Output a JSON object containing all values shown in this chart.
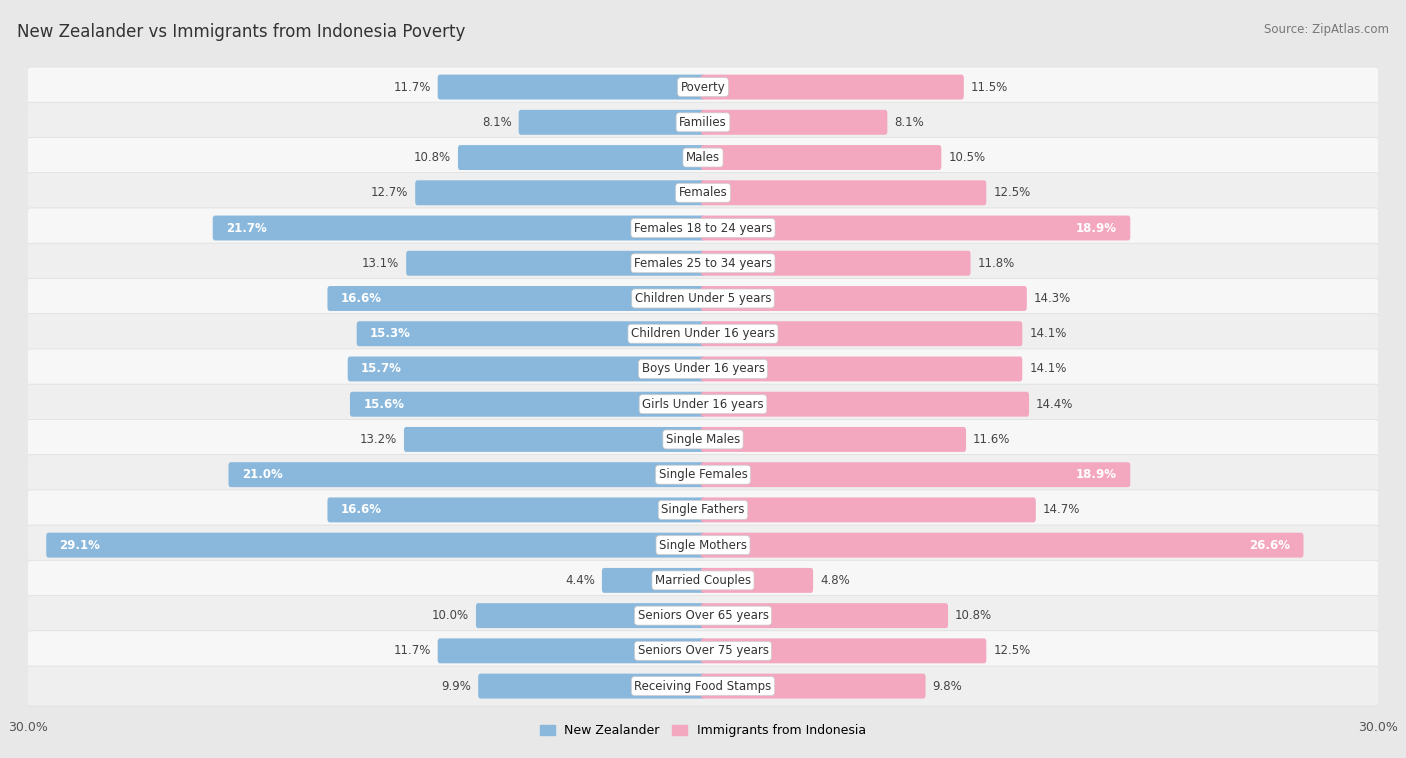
{
  "title": "New Zealander vs Immigrants from Indonesia Poverty",
  "source": "Source: ZipAtlas.com",
  "categories": [
    "Poverty",
    "Families",
    "Males",
    "Females",
    "Females 18 to 24 years",
    "Females 25 to 34 years",
    "Children Under 5 years",
    "Children Under 16 years",
    "Boys Under 16 years",
    "Girls Under 16 years",
    "Single Males",
    "Single Females",
    "Single Fathers",
    "Single Mothers",
    "Married Couples",
    "Seniors Over 65 years",
    "Seniors Over 75 years",
    "Receiving Food Stamps"
  ],
  "left_values": [
    11.7,
    8.1,
    10.8,
    12.7,
    21.7,
    13.1,
    16.6,
    15.3,
    15.7,
    15.6,
    13.2,
    21.0,
    16.6,
    29.1,
    4.4,
    10.0,
    11.7,
    9.9
  ],
  "right_values": [
    11.5,
    8.1,
    10.5,
    12.5,
    18.9,
    11.8,
    14.3,
    14.1,
    14.1,
    14.4,
    11.6,
    18.9,
    14.7,
    26.6,
    4.8,
    10.8,
    12.5,
    9.8
  ],
  "left_color": "#89b8dc",
  "right_color": "#f4a8bf",
  "fig_bg": "#e8e8e8",
  "row_bg_light": "#f7f7f7",
  "row_bg_dark": "#efefef",
  "axis_max": 30.0,
  "legend_left": "New Zealander",
  "legend_right": "Immigrants from Indonesia",
  "bar_height": 0.52,
  "title_fontsize": 12,
  "label_fontsize": 8.5,
  "value_fontsize": 8.5
}
